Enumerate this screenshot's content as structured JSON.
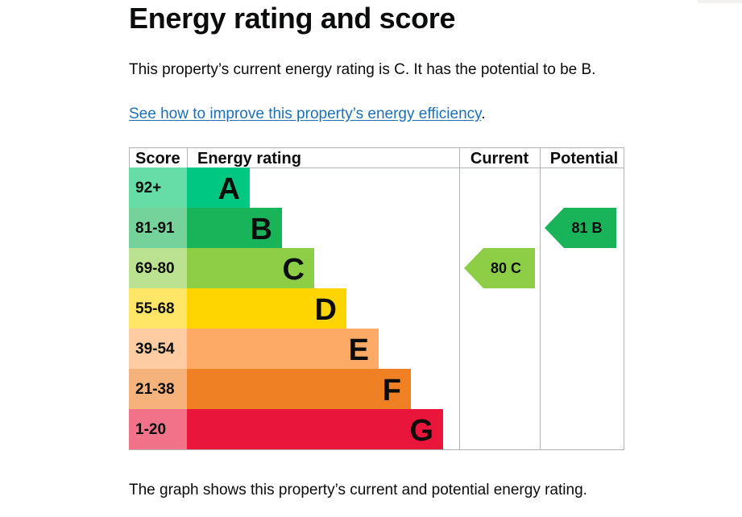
{
  "page": {
    "title": "Energy rating and score",
    "summary": "This property’s current energy rating is C. It has the potential to be B.",
    "link_text": "See how to improve this property’s energy efficiency",
    "link_suffix": ".",
    "caption": "The graph shows this property’s current and potential energy rating."
  },
  "chart_data": {
    "type": "table",
    "headers": {
      "score": "Score",
      "rating": "Energy rating",
      "current": "Current",
      "potential": "Potential"
    },
    "bands": [
      {
        "letter": "A",
        "range": "92+",
        "color": "#00c781",
        "score_color": "#66dda7"
      },
      {
        "letter": "B",
        "range": "81-91",
        "color": "#19b459",
        "score_color": "#75d29b"
      },
      {
        "letter": "C",
        "range": "69-80",
        "color": "#8dce46",
        "score_color": "#bbe290"
      },
      {
        "letter": "D",
        "range": "55-68",
        "color": "#ffd500",
        "score_color": "#ffe666"
      },
      {
        "letter": "E",
        "range": "39-54",
        "color": "#fcaa65",
        "score_color": "#fdcca3"
      },
      {
        "letter": "F",
        "range": "21-38",
        "color": "#ef8023",
        "score_color": "#f5b37b"
      },
      {
        "letter": "G",
        "range": "1-20",
        "color": "#e9153b",
        "score_color": "#f27389"
      }
    ],
    "current": {
      "score": 80,
      "rating": "C",
      "label": "80  C",
      "color": "#8dce46"
    },
    "potential": {
      "score": 81,
      "rating": "B",
      "label": "81  B",
      "color": "#19b459"
    }
  }
}
